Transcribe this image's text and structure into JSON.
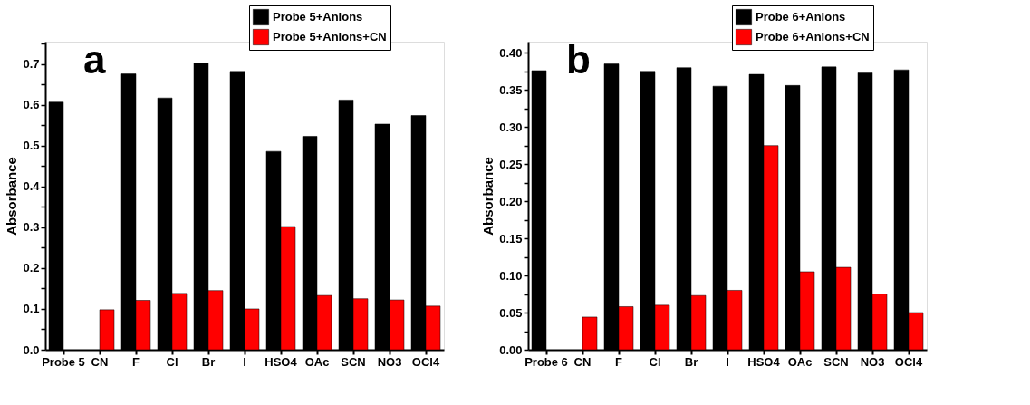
{
  "chart_data": [
    {
      "type": "bar",
      "annotations": [
        "a"
      ],
      "ylabel": "Absorbance",
      "categories": [
        "Probe 5",
        "CN",
        "F",
        "Cl",
        "Br",
        "I",
        "HSO4",
        "OAc",
        "SCN",
        "NO3",
        "OCl4"
      ],
      "series": [
        {
          "name": "Probe 5+Anions",
          "color": "#000000",
          "values": [
            0.607,
            null,
            0.676,
            0.617,
            0.702,
            0.682,
            0.486,
            0.523,
            0.612,
            0.553,
            0.574
          ]
        },
        {
          "name": "Probe 5+Anions+CN",
          "color": "#ff0000",
          "values": [
            null,
            0.098,
            0.121,
            0.138,
            0.145,
            0.1,
            0.302,
            0.133,
            0.125,
            0.122,
            0.107
          ]
        }
      ],
      "ylim": [
        0,
        0.755
      ],
      "yticks": [
        {
          "value": 0,
          "label": "0.0"
        },
        {
          "value": 0.05,
          "label": null
        },
        0.1,
        {
          "value": 0.15,
          "label": null
        },
        0.2,
        {
          "value": 0.25,
          "label": null
        },
        0.3,
        {
          "value": 0.35,
          "label": null
        },
        0.4,
        {
          "value": 0.45,
          "label": null
        },
        0.5,
        {
          "value": 0.55,
          "label": null
        },
        0.6,
        {
          "value": 0.65,
          "label": null
        },
        0.7,
        {
          "value": 0.75,
          "label": null
        }
      ],
      "legend": "top",
      "grid": false
    },
    {
      "type": "bar",
      "annotations": [
        "b"
      ],
      "ylabel": "Absorbance",
      "categories": [
        "Probe 6",
        "CN",
        "F",
        "Cl",
        "Br",
        "I",
        "HSO4",
        "OAc",
        "SCN",
        "NO3",
        "OCl4"
      ],
      "series": [
        {
          "name": "Probe 6+Anions",
          "color": "#000000",
          "values": [
            0.376,
            null,
            0.385,
            0.375,
            0.38,
            0.355,
            0.371,
            0.356,
            0.381,
            0.373,
            0.377
          ]
        },
        {
          "name": "Probe 6+Anions+CN",
          "color": "#ff0000",
          "values": [
            null,
            0.044,
            0.058,
            0.06,
            0.073,
            0.08,
            0.275,
            0.105,
            0.111,
            0.075,
            0.05
          ]
        }
      ],
      "ylim": [
        0,
        0.415
      ],
      "yticks": [
        {
          "value": 0,
          "label": "0.00"
        },
        {
          "value": 0.025,
          "label": null
        },
        {
          "value": 0.05,
          "label": "0.05"
        },
        {
          "value": 0.075,
          "label": null
        },
        {
          "value": 0.1,
          "label": "0.10"
        },
        {
          "value": 0.125,
          "label": null
        },
        {
          "value": 0.15,
          "label": "0.15"
        },
        {
          "value": 0.175,
          "label": null
        },
        {
          "value": 0.2,
          "label": "0.20"
        },
        {
          "value": 0.225,
          "label": null
        },
        {
          "value": 0.25,
          "label": "0.25"
        },
        {
          "value": 0.275,
          "label": null
        },
        {
          "value": 0.3,
          "label": "0.30"
        },
        {
          "value": 0.325,
          "label": null
        },
        {
          "value": 0.35,
          "label": "0.35"
        },
        {
          "value": 0.375,
          "label": null
        },
        {
          "value": 0.4,
          "label": "0.40"
        }
      ],
      "legend": "top",
      "grid": false
    }
  ]
}
